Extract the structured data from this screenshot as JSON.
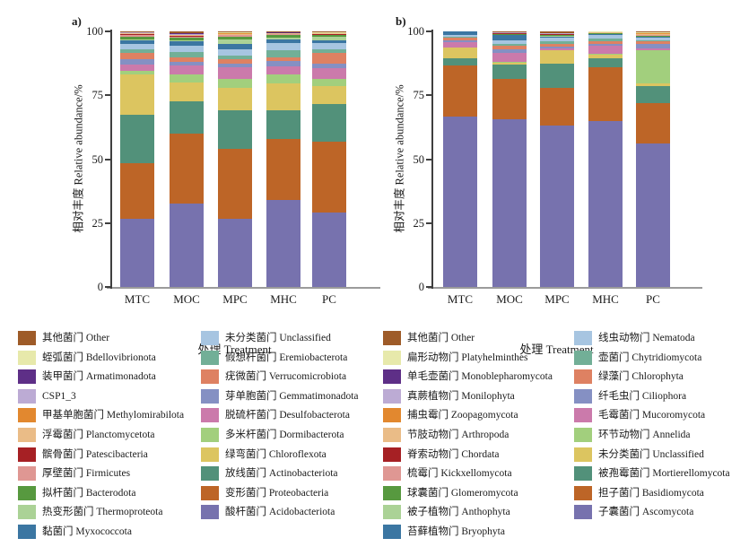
{
  "figure": {
    "background": "#ffffff",
    "axis_line_color": "#3f3f3f",
    "baseline_color": "#9b9b9b"
  },
  "chart_data": [
    {
      "type": "bar",
      "stacked": true,
      "panel": "a)",
      "title": "",
      "xlabel": "处理 Treatment",
      "ylabel": "相对丰度 Relative abundance/%",
      "ylim": [
        0,
        100
      ],
      "yticks": [
        0,
        25,
        50,
        75,
        100
      ],
      "grid": false,
      "legend_position": "bottom",
      "categories": [
        "MTC",
        "MOC",
        "MPC",
        "MHC",
        "PC"
      ],
      "stack_order": "bottom-to-top",
      "series": [
        {
          "label": "酸杆菌门 Acidobacteriota",
          "color": "#7772ae",
          "values": [
            26.5,
            32.5,
            26.5,
            34.0,
            29.0
          ]
        },
        {
          "label": "变形菌门 Proteobacteria",
          "color": "#bd6527",
          "values": [
            22.0,
            27.5,
            27.5,
            24.0,
            28.0
          ]
        },
        {
          "label": "放线菌门 Actinobacteriota",
          "color": "#52917a",
          "values": [
            19.0,
            12.5,
            15.0,
            11.0,
            14.5
          ]
        },
        {
          "label": "绿弯菌门 Chloroflexota",
          "color": "#dcc560",
          "values": [
            15.5,
            7.5,
            9.0,
            10.5,
            7.0
          ]
        },
        {
          "label": "多米杆菌门 Dormibacterota",
          "color": "#a2cf7d",
          "values": [
            1.5,
            3.0,
            3.5,
            3.5,
            3.0
          ]
        },
        {
          "label": "脱硫杆菌门 Desulfobacterota",
          "color": "#cb7aab",
          "values": [
            2.5,
            3.5,
            4.5,
            3.5,
            4.0
          ]
        },
        {
          "label": "芽单胞菌门 Gemmatimonadota",
          "color": "#8590c3",
          "values": [
            2.0,
            1.5,
            1.5,
            2.0,
            2.0
          ]
        },
        {
          "label": "疣微菌门 Verrucomicrobiota",
          "color": "#de8162",
          "values": [
            2.5,
            2.0,
            1.5,
            1.5,
            4.0
          ]
        },
        {
          "label": "假想杆菌门 Eremiobacterota",
          "color": "#72af97",
          "values": [
            1.5,
            2.0,
            1.5,
            2.5,
            1.5
          ]
        },
        {
          "label": "未分类菌门 Unclassified",
          "color": "#a7c5e1",
          "values": [
            2.0,
            2.5,
            2.5,
            3.0,
            2.5
          ]
        },
        {
          "label": "黏菌门 Myxococcota",
          "color": "#3b76a2",
          "values": [
            1.5,
            1.5,
            2.0,
            1.5,
            1.0
          ]
        },
        {
          "label": "热变形菌门 Thermoproteota",
          "color": "#abd296",
          "values": [
            0.5,
            0.5,
            2.0,
            0.5,
            1.5
          ]
        },
        {
          "label": "拟杆菌门 Bacterodota",
          "color": "#57993f",
          "values": [
            1.0,
            1.0,
            1.0,
            1.0,
            0.5
          ]
        },
        {
          "label": "厚壁菌门 Firmicutes",
          "color": "#df9793",
          "values": [
            0.5,
            0.5,
            0.5,
            0.4,
            0.3
          ]
        },
        {
          "label": "髌骨菌门 Patescibacteria",
          "color": "#a62024",
          "values": [
            0.5,
            0.3,
            0.2,
            0.2,
            0.2
          ]
        },
        {
          "label": "浮霉菌门 Planctomycetota",
          "color": "#eabc87",
          "values": [
            0.3,
            0.3,
            0.3,
            0.2,
            0.2
          ]
        },
        {
          "label": "甲基单胞菌门 Methylomirabilota",
          "color": "#e2882f",
          "values": [
            0.2,
            0.2,
            0.2,
            0.1,
            0.1
          ]
        },
        {
          "label": "CSP1_3",
          "color": "#bcabd4",
          "values": [
            0.1,
            0.3,
            0.2,
            0.1,
            0.1
          ]
        },
        {
          "label": "装甲菌门 Armatimonadota",
          "color": "#5e2f87",
          "values": [
            0.1,
            0.2,
            0.1,
            0.1,
            0.1
          ]
        },
        {
          "label": "蛭弧菌门 Bdellovibrionota",
          "color": "#e7e9ab",
          "values": [
            0.1,
            0.2,
            0.1,
            0.1,
            0.1
          ]
        },
        {
          "label": "其他菌门 Other",
          "color": "#9e5b28",
          "values": [
            0.2,
            0.5,
            0.4,
            0.3,
            0.4
          ]
        }
      ]
    },
    {
      "type": "bar",
      "stacked": true,
      "panel": "b)",
      "title": "",
      "xlabel": "处理 Treatment",
      "ylabel": "相对丰度 Relative abundance/%",
      "ylim": [
        0,
        100
      ],
      "yticks": [
        0,
        25,
        50,
        75,
        100
      ],
      "grid": false,
      "legend_position": "bottom",
      "categories": [
        "MTC",
        "MOC",
        "MPC",
        "MHC",
        "PC"
      ],
      "stack_order": "bottom-to-top",
      "series": [
        {
          "label": "子囊菌门 Ascomycota",
          "color": "#7772ae",
          "values": [
            66.5,
            65.5,
            63.0,
            65.0,
            56.0
          ]
        },
        {
          "label": "担子菌门 Basidiomycota",
          "color": "#bd6527",
          "values": [
            20.3,
            16.0,
            15.0,
            21.0,
            16.0
          ]
        },
        {
          "label": "被孢霉菌门 Mortierellomycota",
          "color": "#52917a",
          "values": [
            2.7,
            5.5,
            9.5,
            3.5,
            6.5
          ]
        },
        {
          "label": "未分类菌门 Unclassified",
          "color": "#dcc560",
          "values": [
            4.1,
            0.7,
            5.0,
            1.5,
            1.0
          ]
        },
        {
          "label": "环节动物门 Annelida",
          "color": "#a2cf7d",
          "values": [
            0.1,
            0.3,
            0.3,
            0.3,
            13.0
          ]
        },
        {
          "label": "毛霉菌门 Mucoromycota",
          "color": "#cb7aab",
          "values": [
            2.0,
            3.5,
            0.7,
            3.0,
            1.0
          ]
        },
        {
          "label": "纤毛虫门 Ciliophora",
          "color": "#8590c3",
          "values": [
            0.8,
            1.5,
            0.5,
            0.8,
            1.5
          ]
        },
        {
          "label": "绿藻门 Chlorophyta",
          "color": "#de8162",
          "values": [
            1.0,
            1.3,
            1.0,
            1.0,
            1.0
          ]
        },
        {
          "label": "壶菌门 Chytridiomycota",
          "color": "#72af97",
          "values": [
            0.3,
            0.7,
            1.0,
            1.0,
            0.5
          ]
        },
        {
          "label": "线虫动物门 Nematoda",
          "color": "#a7c5e1",
          "values": [
            0.9,
            1.5,
            1.5,
            1.4,
            1.0
          ]
        },
        {
          "label": "苔藓植物门 Bryophyta",
          "color": "#3b76a2",
          "values": [
            1.2,
            2.0,
            0.4,
            0.4,
            0.3
          ]
        },
        {
          "label": "被子植物门 Anthophyta",
          "color": "#abd296",
          "values": [
            0.05,
            0.2,
            0.3,
            0.2,
            0.3
          ]
        },
        {
          "label": "球囊菌门 Glomeromycota",
          "color": "#57993f",
          "values": [
            0.05,
            0.2,
            0.3,
            0.2,
            0.2
          ]
        },
        {
          "label": "梳霉门 Kickxellomycota",
          "color": "#df9793",
          "values": [
            0.05,
            0.2,
            0.2,
            0.1,
            0.2
          ]
        },
        {
          "label": "脊索动物门 Chordata",
          "color": "#a62024",
          "values": [
            0.05,
            0.1,
            0.2,
            0.1,
            0.3
          ]
        },
        {
          "label": "节肢动物门 Arthropoda",
          "color": "#eabc87",
          "values": [
            0.02,
            0.1,
            0.1,
            0.1,
            0.2
          ]
        },
        {
          "label": "捕虫霉门 Zoopagomycota",
          "color": "#e2882f",
          "values": [
            0.02,
            0.1,
            0.1,
            0.1,
            0.2
          ]
        },
        {
          "label": "真蕨植物门 Monilophyta",
          "color": "#bcabd4",
          "values": [
            0.02,
            0.2,
            0.1,
            0.1,
            0.2
          ]
        },
        {
          "label": "单毛壶菌门 Monoblepharomycota",
          "color": "#5e2f87",
          "values": [
            0.02,
            0.1,
            0.1,
            0.05,
            0.1
          ]
        },
        {
          "label": "扁形动物门 Platyhelminthes",
          "color": "#e7e9ab",
          "values": [
            0.02,
            0.1,
            0.1,
            0.05,
            0.1
          ]
        },
        {
          "label": "其他菌门 Other",
          "color": "#9e5b28",
          "values": [
            0.06,
            0.2,
            0.6,
            0.1,
            0.4
          ]
        }
      ]
    }
  ]
}
